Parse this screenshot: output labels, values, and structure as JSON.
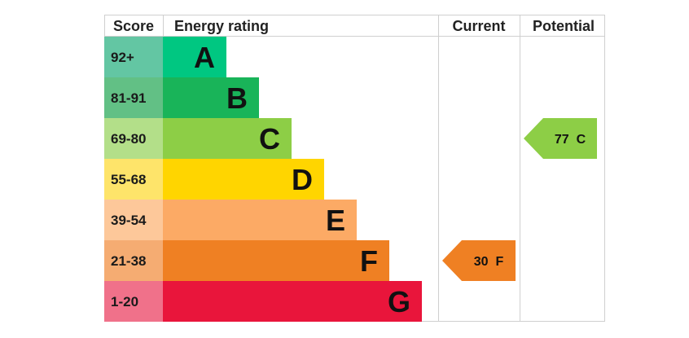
{
  "chart_data": {
    "type": "table",
    "headers": {
      "score": "Score",
      "rating": "Energy rating",
      "current": "Current",
      "potential": "Potential"
    },
    "bands": [
      {
        "letter": "A",
        "range": "92+",
        "color": "#00c781",
        "score_color": "#63c6a3"
      },
      {
        "letter": "B",
        "range": "81-91",
        "color": "#19b459",
        "score_color": "#62c085"
      },
      {
        "letter": "C",
        "range": "69-80",
        "color": "#8dce46",
        "score_color": "#b3df89"
      },
      {
        "letter": "D",
        "range": "55-68",
        "color": "#ffd500",
        "score_color": "#fee46a"
      },
      {
        "letter": "E",
        "range": "39-54",
        "color": "#fcaa65",
        "score_color": "#fdc89a"
      },
      {
        "letter": "F",
        "range": "21-38",
        "color": "#ef8023",
        "score_color": "#f5ac72"
      },
      {
        "letter": "G",
        "range": "1-20",
        "color": "#e9153b",
        "score_color": "#f0718a"
      }
    ],
    "current": {
      "value": 30,
      "band": "F",
      "label": "30  F",
      "color": "#ef8023"
    },
    "potential": {
      "value": 77,
      "band": "C",
      "label": "77  C",
      "color": "#8dce46"
    }
  }
}
